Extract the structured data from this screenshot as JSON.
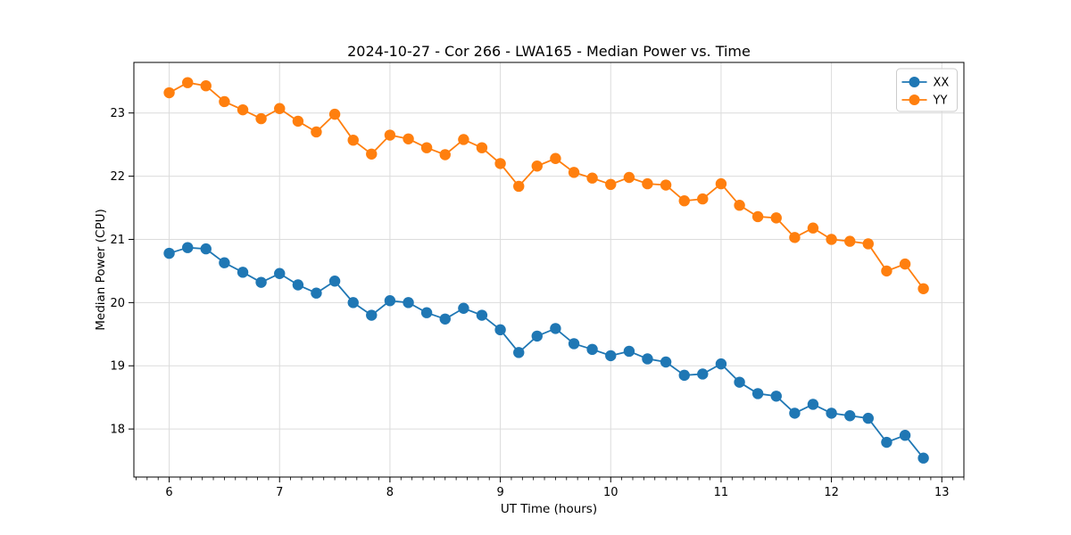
{
  "chart_data": {
    "type": "line",
    "title": "2024-10-27 - Cor 266 - LWA165 - Median Power vs. Time",
    "xlabel": "UT Time (hours)",
    "ylabel": "Median Power (CPU)",
    "xlim": [
      5.68,
      13.2
    ],
    "ylim": [
      17.24,
      23.8
    ],
    "xticks": [
      6,
      7,
      8,
      9,
      10,
      11,
      12,
      13
    ],
    "yticks": [
      18,
      19,
      20,
      21,
      22,
      23
    ],
    "x_minor_tick_step": 0.1,
    "grid": true,
    "grid_color": "#dcdcdc",
    "legend_position": "upper right",
    "x": [
      6.0,
      6.167,
      6.333,
      6.5,
      6.667,
      6.833,
      7.0,
      7.167,
      7.333,
      7.5,
      7.667,
      7.833,
      8.0,
      8.167,
      8.333,
      8.5,
      8.667,
      8.833,
      9.0,
      9.167,
      9.333,
      9.5,
      9.667,
      9.833,
      10.0,
      10.167,
      10.333,
      10.5,
      10.667,
      10.833,
      11.0,
      11.167,
      11.333,
      11.5,
      11.667,
      11.833,
      12.0,
      12.167,
      12.333,
      12.5,
      12.667,
      12.833
    ],
    "series": [
      {
        "name": "XX",
        "color": "#1f77b4",
        "values": [
          20.78,
          20.87,
          20.85,
          20.63,
          20.48,
          20.32,
          20.46,
          20.28,
          20.15,
          20.34,
          20.0,
          19.8,
          20.03,
          20.0,
          19.84,
          19.74,
          19.91,
          19.8,
          19.57,
          19.21,
          19.47,
          19.59,
          19.35,
          19.26,
          19.16,
          19.23,
          19.11,
          19.06,
          18.85,
          18.87,
          19.03,
          18.74,
          18.56,
          18.52,
          18.25,
          18.39,
          18.25,
          18.21,
          18.17,
          17.79,
          17.9,
          17.54
        ]
      },
      {
        "name": "YY",
        "color": "#ff7f0e",
        "values": [
          23.32,
          23.48,
          23.43,
          23.18,
          23.05,
          22.91,
          23.07,
          22.87,
          22.7,
          22.98,
          22.57,
          22.35,
          22.65,
          22.59,
          22.45,
          22.34,
          22.58,
          22.45,
          22.2,
          21.84,
          22.16,
          22.28,
          22.06,
          21.97,
          21.87,
          21.98,
          21.88,
          21.86,
          21.61,
          21.64,
          21.88,
          21.54,
          21.36,
          21.34,
          21.03,
          21.18,
          21.0,
          20.97,
          20.93,
          20.5,
          20.61,
          20.22
        ]
      }
    ]
  }
}
